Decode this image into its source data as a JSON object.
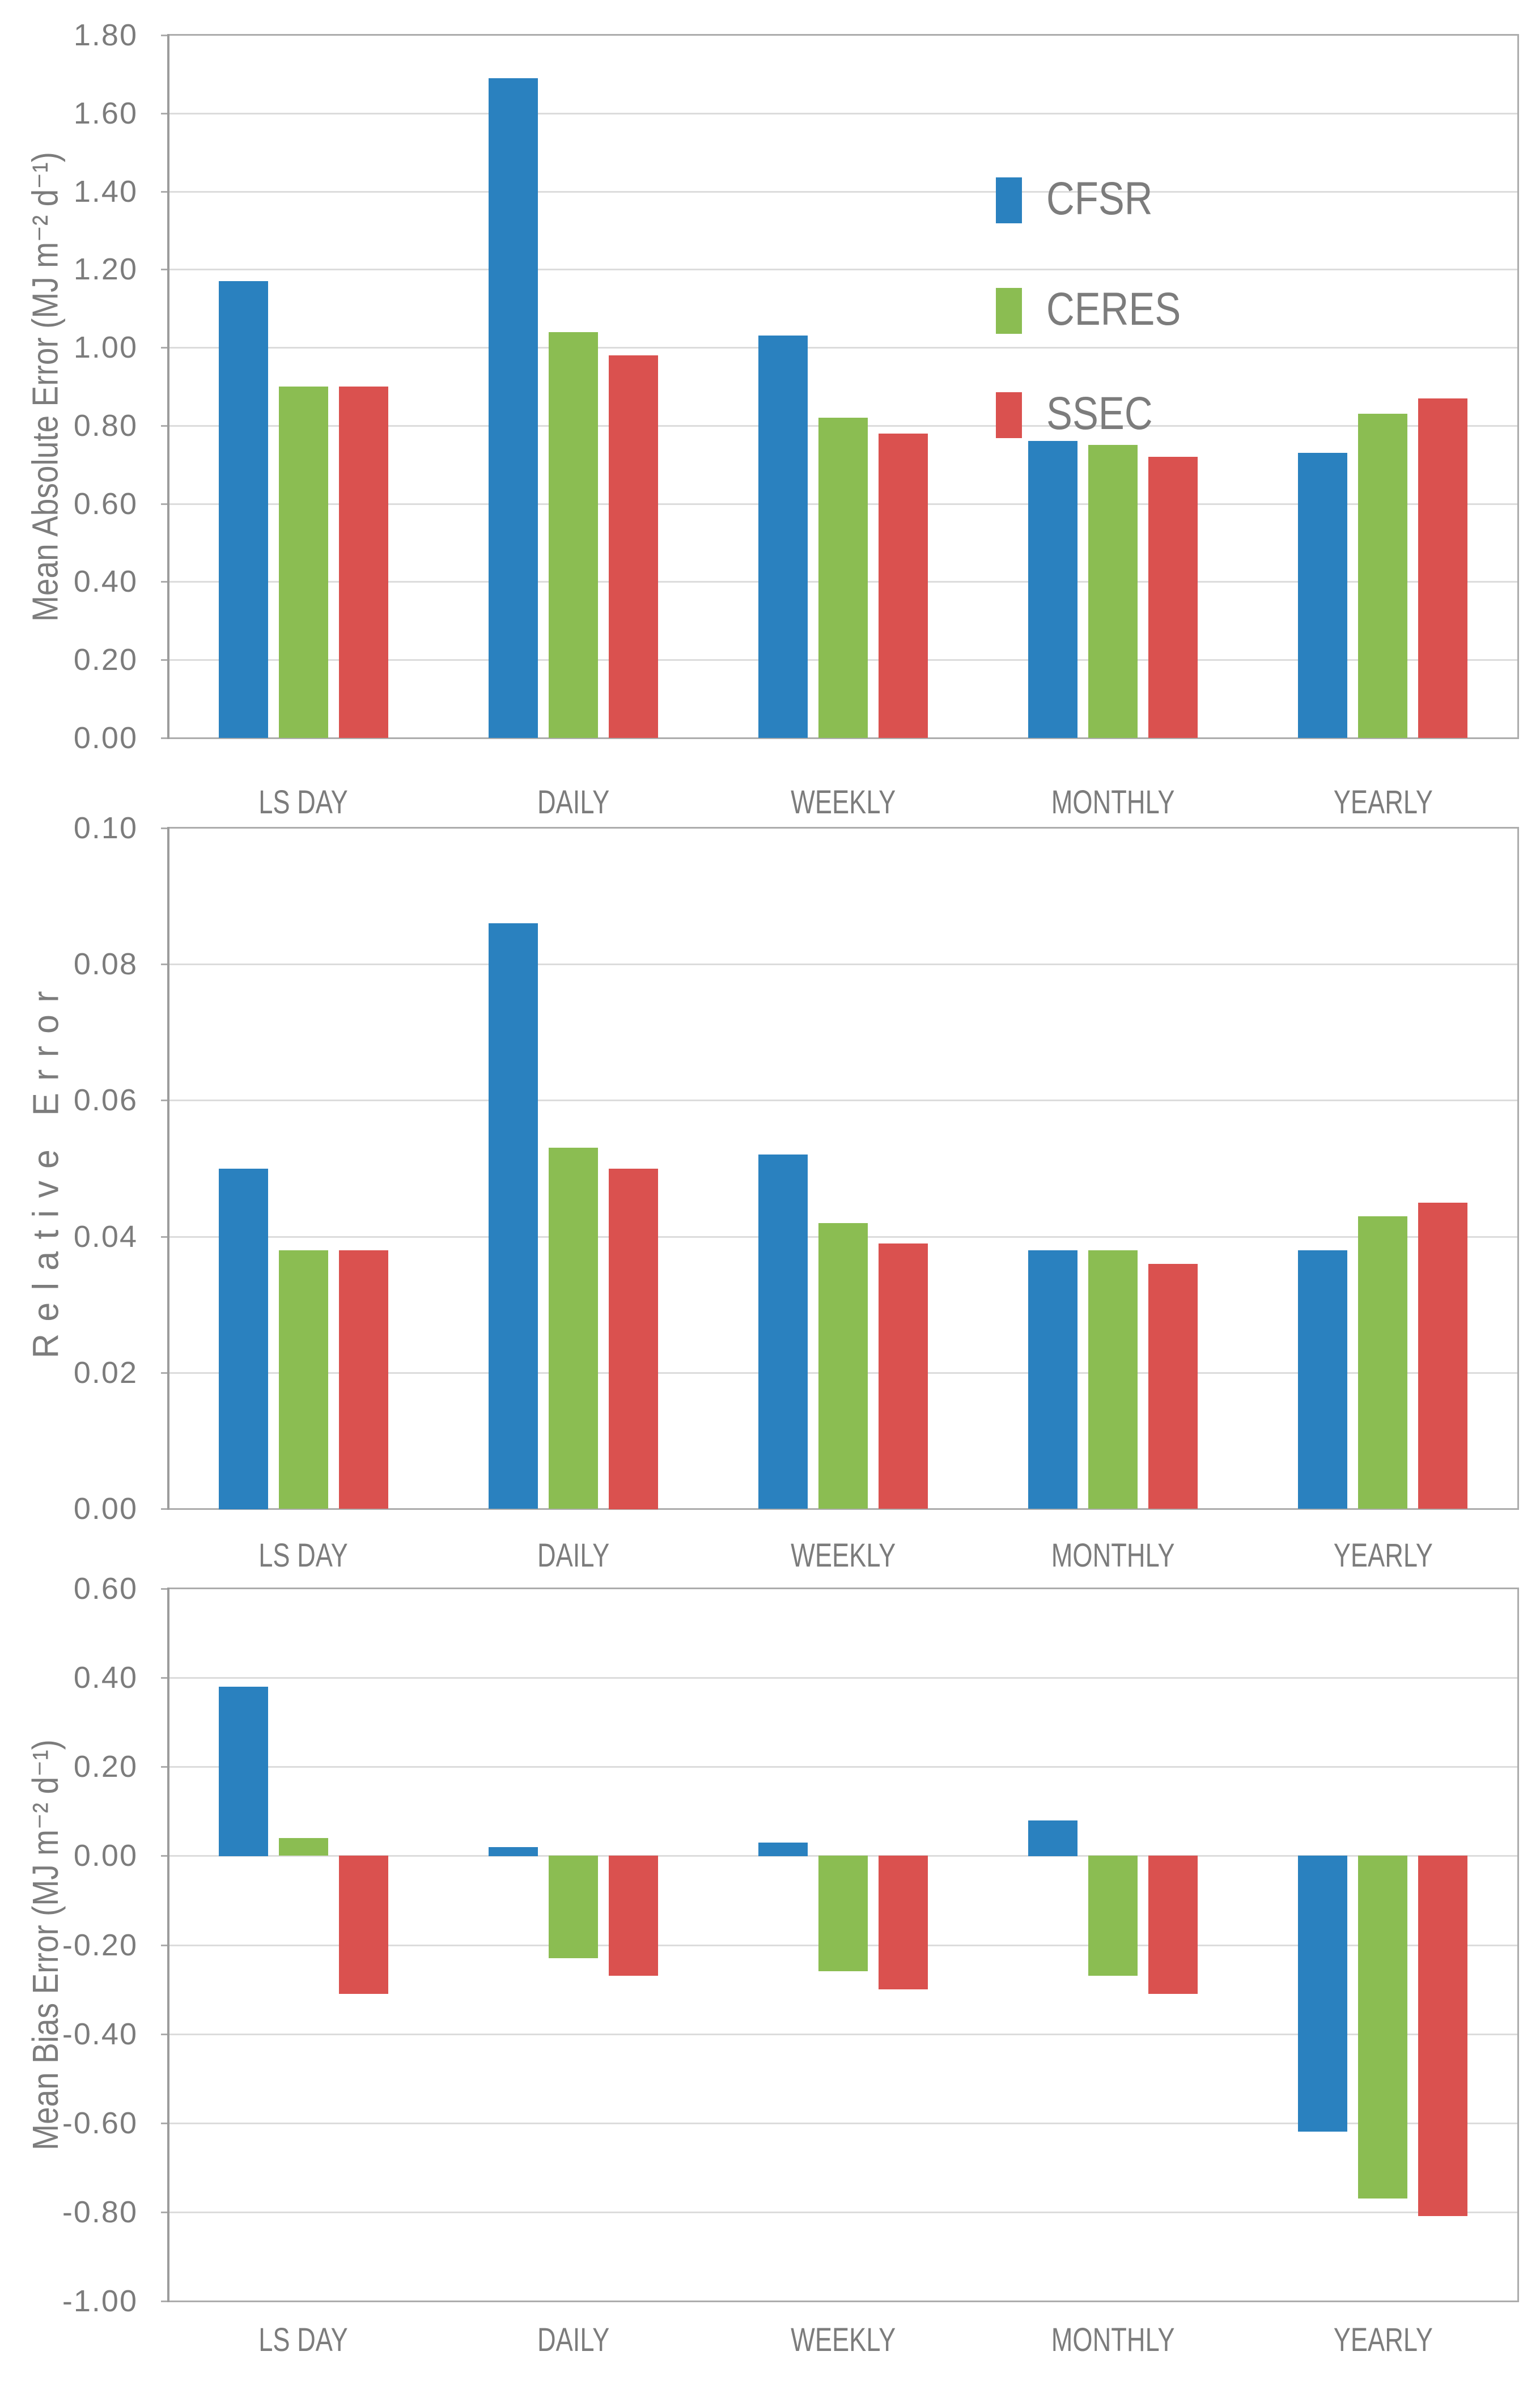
{
  "palette": {
    "cfsr_blue": "#2A81BF",
    "ceres_green": "#8BBD52",
    "ssec_red": "#DA514F",
    "text_gray": "#7C7C7C",
    "gridline_gray": "#DCDCDC",
    "border_gray": "#ACACAC"
  },
  "chart_data": [
    {
      "type": "bar",
      "title": "",
      "ylabel": "Mean Absolute Error (MJ m⁻² d⁻¹)",
      "xlabel": "",
      "ylim": [
        0,
        1.8
      ],
      "ystep": 0.2,
      "grid": true,
      "legend_position": "inside-top-right",
      "yticks": [
        "1.80",
        "1.60",
        "1.40",
        "1.20",
        "1.00",
        "0.80",
        "0.60",
        "0.40",
        "0.20",
        "0.00"
      ],
      "categories": [
        "LS DAY",
        "DAILY",
        "WEEKLY",
        "MONTHLY",
        "YEARLY"
      ],
      "series": [
        {
          "name": "CFSR",
          "color": "#2A81BF",
          "values": [
            1.17,
            1.69,
            1.03,
            0.76,
            0.73
          ]
        },
        {
          "name": "CERES",
          "color": "#8BBD52",
          "values": [
            0.9,
            1.04,
            0.82,
            0.75,
            0.83
          ]
        },
        {
          "name": "SSEC",
          "color": "#DA514F",
          "values": [
            0.9,
            0.98,
            0.78,
            0.72,
            0.87
          ]
        }
      ]
    },
    {
      "type": "bar",
      "title": "",
      "ylabel": "Relative Error",
      "xlabel": "",
      "ylim": [
        0,
        0.1
      ],
      "ystep": 0.02,
      "grid": true,
      "legend_position": "none",
      "yticks": [
        "0.10",
        "0.08",
        "0.06",
        "0.04",
        "0.02",
        "0.00"
      ],
      "categories": [
        "LS DAY",
        "DAILY",
        "WEEKLY",
        "MONTHLY",
        "YEARLY"
      ],
      "series": [
        {
          "name": "CFSR",
          "color": "#2A81BF",
          "values": [
            0.05,
            0.086,
            0.052,
            0.038,
            0.038
          ]
        },
        {
          "name": "CERES",
          "color": "#8BBD52",
          "values": [
            0.038,
            0.053,
            0.042,
            0.038,
            0.043
          ]
        },
        {
          "name": "SSEC",
          "color": "#DA514F",
          "values": [
            0.038,
            0.05,
            0.039,
            0.036,
            0.045
          ]
        }
      ]
    },
    {
      "type": "bar",
      "title": "",
      "ylabel": "Mean Bias Error (MJ m⁻² d⁻¹)",
      "xlabel": "",
      "ylim": [
        -1.0,
        0.6
      ],
      "ystep": 0.2,
      "grid": true,
      "legend_position": "none",
      "yticks": [
        "0.60",
        "0.40",
        "0.20",
        "0.00",
        "-0.20",
        "-0.40",
        "-0.60",
        "-0.80",
        "-1.00"
      ],
      "categories": [
        "LS DAY",
        "DAILY",
        "WEEKLY",
        "MONTHLY",
        "YEARLY"
      ],
      "series": [
        {
          "name": "CFSR",
          "color": "#2A81BF",
          "values": [
            0.38,
            0.02,
            0.03,
            0.08,
            -0.62
          ]
        },
        {
          "name": "CERES",
          "color": "#8BBD52",
          "values": [
            0.04,
            -0.23,
            -0.26,
            -0.27,
            -0.77
          ]
        },
        {
          "name": "SSEC",
          "color": "#DA514F",
          "values": [
            -0.31,
            -0.27,
            -0.3,
            -0.31,
            -0.81
          ]
        }
      ]
    }
  ]
}
